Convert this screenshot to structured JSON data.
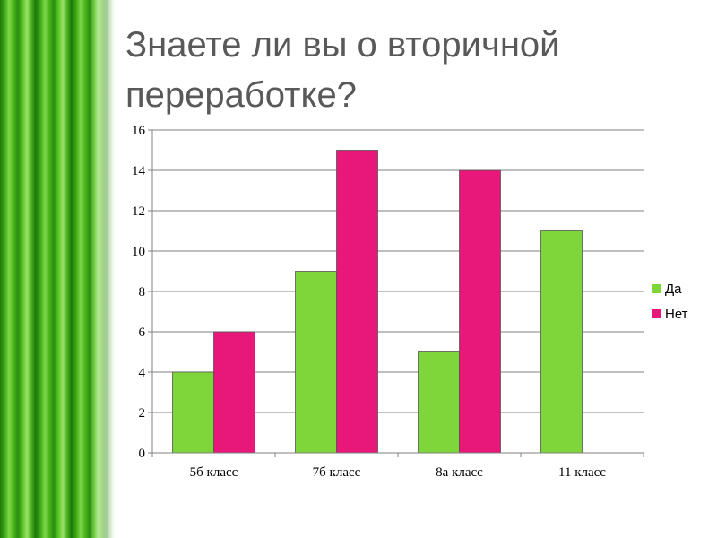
{
  "slide": {
    "title": "Знаете ли вы о вторичной\nпереработке?"
  },
  "chart_data": {
    "type": "bar",
    "title": "",
    "xlabel": "",
    "ylabel": "",
    "categories": [
      "5б класс",
      "7б класс",
      "8а класс",
      "11 класс"
    ],
    "series": [
      {
        "name": "Да",
        "values": [
          4,
          9,
          5,
          11
        ],
        "color": "#7ed63a"
      },
      {
        "name": "Нет",
        "values": [
          6,
          15,
          14,
          0
        ],
        "color": "#e8177a"
      }
    ],
    "ylim": [
      0,
      16
    ],
    "yticks": [
      0,
      2,
      4,
      6,
      8,
      10,
      12,
      14,
      16
    ],
    "grid": true,
    "legend": "right"
  }
}
